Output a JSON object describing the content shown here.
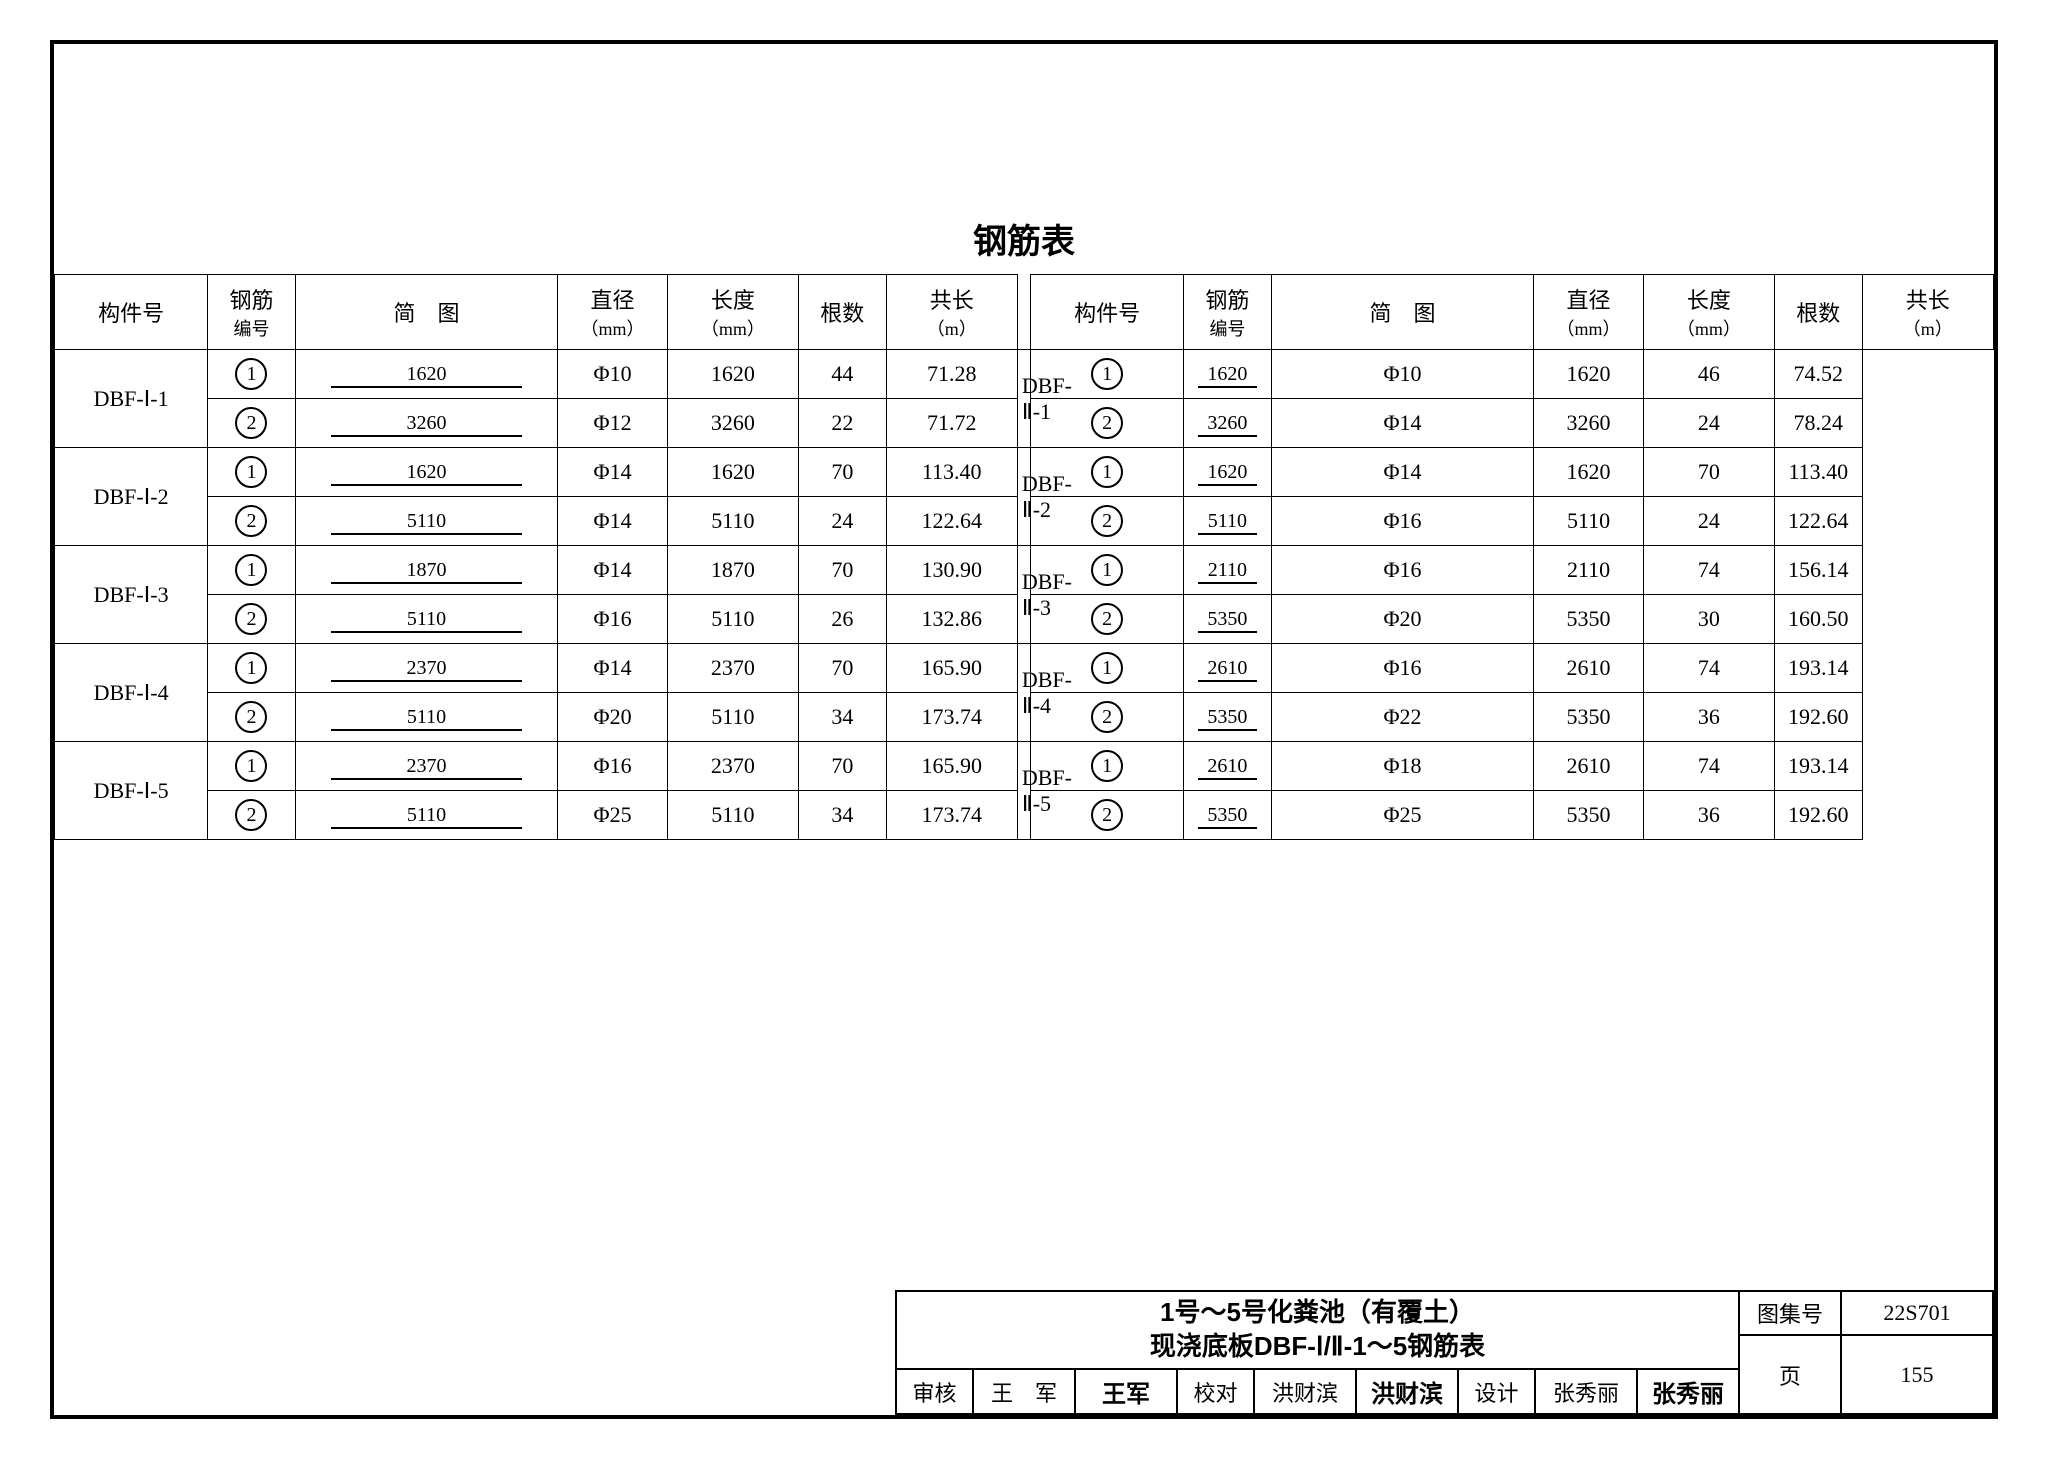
{
  "colors": {
    "page_bg": "#ffffff",
    "line": "#000000",
    "text": "#000000"
  },
  "typography": {
    "title_fontsize_pt": 26,
    "header_fontsize_pt": 17,
    "cell_fontsize_pt": 17,
    "font_family": "SimSun"
  },
  "table": {
    "title": "钢筋表",
    "headers": {
      "component": "构件号",
      "rebar_no": {
        "line1": "钢筋",
        "line2": "编号"
      },
      "diagram": "简　图",
      "diameter": {
        "line1": "直径",
        "line2": "（mm）"
      },
      "length": {
        "line1": "长度",
        "line2": "（mm）"
      },
      "count": "根数",
      "total": {
        "line1": "共长",
        "line2": "（m）"
      }
    },
    "left": [
      {
        "component": "DBF-Ⅰ-1",
        "rows": [
          {
            "no": "1",
            "diagram": "1620",
            "dia": "Φ10",
            "len": "1620",
            "cnt": "44",
            "total": "71.28"
          },
          {
            "no": "2",
            "diagram": "3260",
            "dia": "Φ12",
            "len": "3260",
            "cnt": "22",
            "total": "71.72"
          }
        ]
      },
      {
        "component": "DBF-Ⅰ-2",
        "rows": [
          {
            "no": "1",
            "diagram": "1620",
            "dia": "Φ14",
            "len": "1620",
            "cnt": "70",
            "total": "113.40"
          },
          {
            "no": "2",
            "diagram": "5110",
            "dia": "Φ14",
            "len": "5110",
            "cnt": "24",
            "total": "122.64"
          }
        ]
      },
      {
        "component": "DBF-Ⅰ-3",
        "rows": [
          {
            "no": "1",
            "diagram": "1870",
            "dia": "Φ14",
            "len": "1870",
            "cnt": "70",
            "total": "130.90"
          },
          {
            "no": "2",
            "diagram": "5110",
            "dia": "Φ16",
            "len": "5110",
            "cnt": "26",
            "total": "132.86"
          }
        ]
      },
      {
        "component": "DBF-Ⅰ-4",
        "rows": [
          {
            "no": "1",
            "diagram": "2370",
            "dia": "Φ14",
            "len": "2370",
            "cnt": "70",
            "total": "165.90"
          },
          {
            "no": "2",
            "diagram": "5110",
            "dia": "Φ20",
            "len": "5110",
            "cnt": "34",
            "total": "173.74"
          }
        ]
      },
      {
        "component": "DBF-Ⅰ-5",
        "rows": [
          {
            "no": "1",
            "diagram": "2370",
            "dia": "Φ16",
            "len": "2370",
            "cnt": "70",
            "total": "165.90"
          },
          {
            "no": "2",
            "diagram": "5110",
            "dia": "Φ25",
            "len": "5110",
            "cnt": "34",
            "total": "173.74"
          }
        ]
      }
    ],
    "right": [
      {
        "component": "DBF-Ⅱ-1",
        "rows": [
          {
            "no": "1",
            "diagram": "1620",
            "dia": "Φ10",
            "len": "1620",
            "cnt": "46",
            "total": "74.52"
          },
          {
            "no": "2",
            "diagram": "3260",
            "dia": "Φ14",
            "len": "3260",
            "cnt": "24",
            "total": "78.24"
          }
        ]
      },
      {
        "component": "DBF-Ⅱ-2",
        "rows": [
          {
            "no": "1",
            "diagram": "1620",
            "dia": "Φ14",
            "len": "1620",
            "cnt": "70",
            "total": "113.40"
          },
          {
            "no": "2",
            "diagram": "5110",
            "dia": "Φ16",
            "len": "5110",
            "cnt": "24",
            "total": "122.64"
          }
        ]
      },
      {
        "component": "DBF-Ⅱ-3",
        "rows": [
          {
            "no": "1",
            "diagram": "2110",
            "dia": "Φ16",
            "len": "2110",
            "cnt": "74",
            "total": "156.14"
          },
          {
            "no": "2",
            "diagram": "5350",
            "dia": "Φ20",
            "len": "5350",
            "cnt": "30",
            "total": "160.50"
          }
        ]
      },
      {
        "component": "DBF-Ⅱ-4",
        "rows": [
          {
            "no": "1",
            "diagram": "2610",
            "dia": "Φ16",
            "len": "2610",
            "cnt": "74",
            "total": "193.14"
          },
          {
            "no": "2",
            "diagram": "5350",
            "dia": "Φ22",
            "len": "5350",
            "cnt": "36",
            "total": "192.60"
          }
        ]
      },
      {
        "component": "DBF-Ⅱ-5",
        "rows": [
          {
            "no": "1",
            "diagram": "2610",
            "dia": "Φ18",
            "len": "2610",
            "cnt": "74",
            "total": "193.14"
          },
          {
            "no": "2",
            "diagram": "5350",
            "dia": "Φ25",
            "len": "5350",
            "cnt": "36",
            "total": "192.60"
          }
        ]
      }
    ]
  },
  "title_block": {
    "drawing_title_line1": "1号～5号化粪池（有覆土）",
    "drawing_title_line2": "现浇底板DBF-Ⅰ/Ⅱ-1～5钢筋表",
    "set_no_label": "图集号",
    "set_no": "22S701",
    "page_label": "页",
    "page_no": "155",
    "review_label": "审核",
    "review_name": "王　军",
    "review_sig": "王军",
    "check_label": "校对",
    "check_name": "洪财滨",
    "check_sig": "洪财滨",
    "design_label": "设计",
    "design_name": "张秀丽",
    "design_sig": "张秀丽"
  }
}
